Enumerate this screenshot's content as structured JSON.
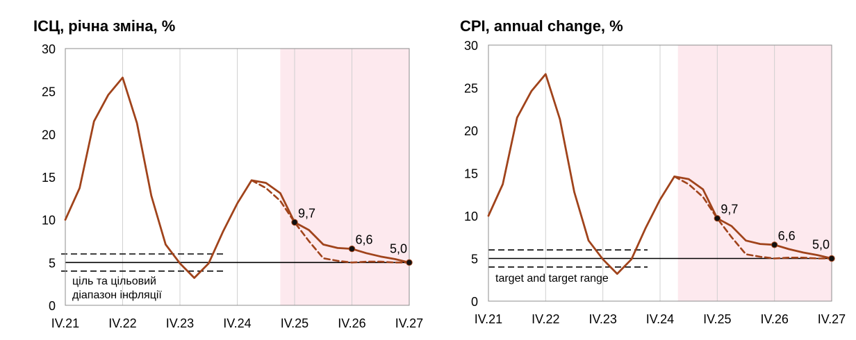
{
  "chart_data": [
    {
      "type": "line",
      "title": "ІСЦ, річна зміна, %",
      "xlabel": "",
      "ylabel": "",
      "ylim": [
        0,
        30
      ],
      "yticks": [
        0,
        5,
        10,
        15,
        20,
        25,
        30
      ],
      "grid": "vertical",
      "x_tick_labels": [
        "IV.21",
        "IV.22",
        "IV.23",
        "IV.24",
        "IV.25",
        "IV.26",
        "IV.27"
      ],
      "forecast_shading_start_quarter": 15,
      "forecast_shading_color": "#fde9ee",
      "line_color": "#a0431b",
      "series": [
        {
          "style": "solid",
          "x": [
            0,
            1,
            2,
            3,
            4,
            5,
            6,
            7,
            8,
            9,
            10,
            11,
            12,
            13,
            14,
            15,
            16,
            17,
            18,
            19,
            20,
            21,
            22,
            23,
            24
          ],
          "values": [
            10.0,
            13.7,
            21.5,
            24.6,
            26.6,
            21.3,
            12.8,
            7.1,
            4.9,
            3.2,
            4.9,
            8.6,
            11.9,
            14.6,
            14.3,
            13.1,
            9.7,
            8.8,
            7.1,
            6.7,
            6.6,
            6.1,
            5.7,
            5.4,
            5.0
          ]
        },
        {
          "style": "dashed",
          "x": [
            13,
            14,
            15,
            16,
            17,
            18,
            19,
            20,
            21,
            22,
            23,
            24
          ],
          "values": [
            14.6,
            13.7,
            12.2,
            9.7,
            7.5,
            5.5,
            5.2,
            5.0,
            5.1,
            5.1,
            5.0,
            5.0
          ]
        }
      ],
      "target": 5,
      "target_range": [
        4,
        6
      ],
      "target_label_lines": [
        "ціль та цільовий",
        "діапазон інфляції"
      ],
      "data_labels": [
        {
          "x": 16,
          "value": 9.7,
          "label": "9,7"
        },
        {
          "x": 20,
          "value": 6.6,
          "label": "6,6"
        },
        {
          "x": 24,
          "value": 5.0,
          "label": "5,0"
        }
      ]
    },
    {
      "type": "line",
      "title": "CPI, annual change, %",
      "xlabel": "",
      "ylabel": "",
      "ylim": [
        0,
        30
      ],
      "yticks": [
        0,
        5,
        10,
        15,
        20,
        25,
        30
      ],
      "grid": "vertical",
      "x_tick_labels": [
        "IV.21",
        "IV.22",
        "IV.23",
        "IV.24",
        "IV.25",
        "IV.26",
        "IV.27"
      ],
      "forecast_shading_start_quarter": 13.25,
      "forecast_shading_color": "#fde9ee",
      "line_color": "#a0431b",
      "series": [
        {
          "style": "solid",
          "x": [
            0,
            1,
            2,
            3,
            4,
            5,
            6,
            7,
            8,
            9,
            10,
            11,
            12,
            13,
            14,
            15,
            16,
            17,
            18,
            19,
            20,
            21,
            22,
            23,
            24
          ],
          "values": [
            10.0,
            13.7,
            21.5,
            24.6,
            26.6,
            21.3,
            12.8,
            7.1,
            4.9,
            3.2,
            4.9,
            8.6,
            11.9,
            14.6,
            14.3,
            13.1,
            9.7,
            8.8,
            7.1,
            6.7,
            6.6,
            6.1,
            5.7,
            5.4,
            5.0
          ]
        },
        {
          "style": "dashed",
          "x": [
            13,
            14,
            15,
            16,
            17,
            18,
            19,
            20,
            21,
            22,
            23,
            24
          ],
          "values": [
            14.6,
            13.7,
            12.2,
            9.7,
            7.5,
            5.5,
            5.2,
            5.0,
            5.1,
            5.1,
            5.0,
            5.0
          ]
        }
      ],
      "target": 5,
      "target_range": [
        4,
        6
      ],
      "target_label_lines": [
        "target and target range"
      ],
      "data_labels": [
        {
          "x": 16,
          "value": 9.7,
          "label": "9,7"
        },
        {
          "x": 20,
          "value": 6.6,
          "label": "6,6"
        },
        {
          "x": 24,
          "value": 5.0,
          "label": "5,0"
        }
      ]
    }
  ]
}
